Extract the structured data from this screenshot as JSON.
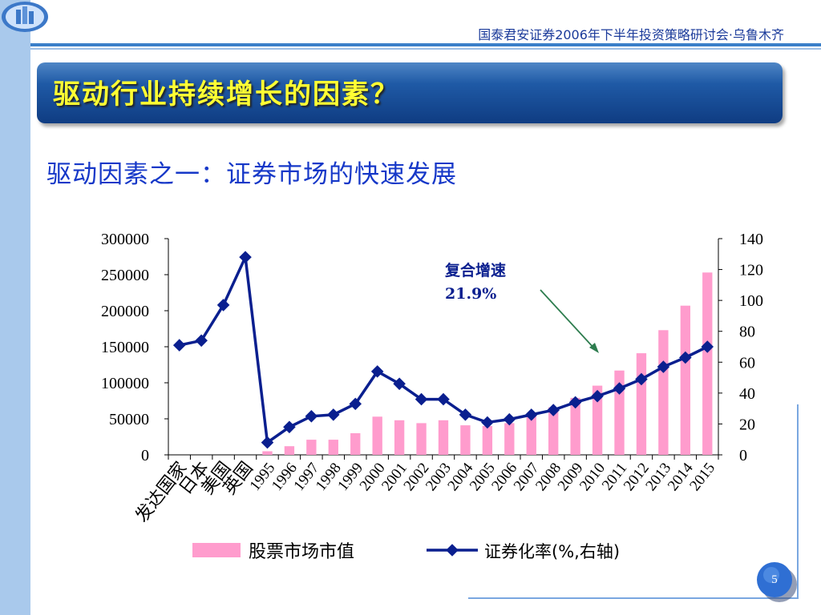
{
  "header": {
    "conference": "国泰君安证券2006年下半年投资策略研讨会·乌鲁木齐"
  },
  "slide": {
    "title": "驱动行业持续增长的因素？",
    "subtitle": "驱动因素之一：证券市场的快速发展",
    "page_number": "5"
  },
  "colors": {
    "bar": "#ff9ccd",
    "line": "#0a1f8f",
    "title_text": "#ffff33",
    "subtitle_text": "#1638c8",
    "annotation_text": "#0a1f8f",
    "arrow": "#2e7d4f"
  },
  "chart_data": {
    "type": "bar+line",
    "categories": [
      "发达国家",
      "日本",
      "美国",
      "英国",
      "1995",
      "1996",
      "1997",
      "1998",
      "1999",
      "2000",
      "2001",
      "2002",
      "2003",
      "2004",
      "2005",
      "2006",
      "2007",
      "2008",
      "2009",
      "2010",
      "2011",
      "2012",
      "2013",
      "2014",
      "2015"
    ],
    "y_left": {
      "min": 0,
      "max": 300000,
      "ticks": [
        "0",
        "50000",
        "100000",
        "150000",
        "200000",
        "250000",
        "300000"
      ]
    },
    "y_right": {
      "min": 0,
      "max": 140,
      "ticks": [
        "0",
        "20",
        "40",
        "60",
        "80",
        "100",
        "120",
        "140"
      ]
    },
    "series": [
      {
        "name": "股票市场市值",
        "type": "bar",
        "axis": "left",
        "values": [
          null,
          null,
          null,
          null,
          5000,
          12000,
          21000,
          21000,
          30000,
          53000,
          48000,
          44000,
          48000,
          41000,
          40000,
          44000,
          54000,
          66000,
          79000,
          96000,
          117000,
          141000,
          173000,
          207000,
          253000
        ]
      },
      {
        "name": "证券化率(%,右轴)",
        "type": "line",
        "axis": "right",
        "values": [
          71,
          74,
          97,
          128,
          8,
          18,
          25,
          26,
          33,
          54,
          46,
          36,
          36,
          26,
          21,
          23,
          26,
          29,
          34,
          38,
          43,
          49,
          57,
          63,
          70
        ]
      }
    ],
    "annotation": {
      "line1": "复合增速",
      "line2": "21.9%"
    },
    "legend": {
      "position": "bottom"
    }
  }
}
